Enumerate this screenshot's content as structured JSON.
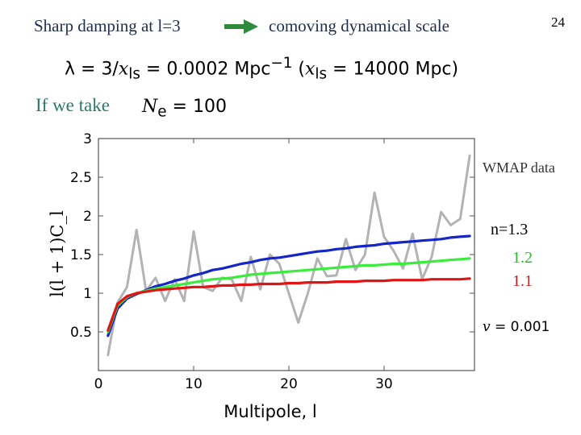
{
  "header": {
    "title_left": "Sharp damping at l=3",
    "title_right": "comoving dynamical scale",
    "page_number": "24"
  },
  "formula": {
    "lhs": "λ = 3/",
    "x1": "x",
    "sub1": "ls",
    "mid": " = 0.0002 Mpc",
    "exp": "−1",
    "paren_open": "  (",
    "x2": "x",
    "sub2": "ls",
    "tail": " = 14000 Mpc)"
  },
  "assumption": {
    "label": "If we take",
    "symbol": "N",
    "sub": "e",
    "value": " = 100"
  },
  "annotations": {
    "wmap": "WMAP data",
    "n13": "n=1.3",
    "n12": "1.2",
    "n11": "1.1",
    "v_symbol": "v",
    "v_value": " = 0.001"
  },
  "colors": {
    "wmap": "#b3b3b3",
    "n13": "#1426c8",
    "n12": "#3cec3c",
    "n11": "#e01414",
    "accent_arrow": "#2e8b3c"
  },
  "chart_data": {
    "type": "line",
    "xlabel": "Multipole, l",
    "ylabel": "l(l + 1)C_l",
    "xlim": [
      0,
      39.5
    ],
    "ylim": [
      0,
      3
    ],
    "xticks": [
      0,
      10,
      20,
      30
    ],
    "yticks": [
      0.5,
      1,
      1.5,
      2,
      2.5,
      3
    ],
    "ytick_labels": [
      "0.5",
      "1",
      "1.5",
      "2",
      "2.5",
      "3"
    ],
    "grid": false,
    "series": [
      {
        "name": "WMAP data",
        "color": "#b3b3b3",
        "x": [
          1,
          2,
          3,
          4,
          5,
          6,
          7,
          8,
          9,
          10,
          11,
          12,
          13,
          14,
          15,
          16,
          17,
          18,
          19,
          20,
          21,
          22,
          23,
          24,
          25,
          26,
          27,
          28,
          29,
          30,
          31,
          32,
          33,
          34,
          35,
          36,
          37,
          38,
          39
        ],
        "y": [
          0.2,
          0.88,
          1.08,
          1.82,
          1.03,
          1.2,
          0.9,
          1.18,
          0.9,
          1.8,
          1.08,
          1.03,
          1.2,
          1.18,
          0.9,
          1.47,
          1.05,
          1.5,
          1.38,
          1.0,
          0.62,
          1.0,
          1.45,
          1.22,
          1.23,
          1.7,
          1.3,
          1.5,
          2.3,
          1.73,
          1.55,
          1.32,
          1.77,
          1.18,
          1.47,
          2.05,
          1.88,
          1.96,
          2.78
        ]
      },
      {
        "name": "n=1.3",
        "color": "#1426c8",
        "x": [
          1,
          2,
          3,
          4,
          5,
          6,
          7,
          8,
          9,
          10,
          11,
          12,
          13,
          14,
          15,
          16,
          17,
          18,
          19,
          20,
          21,
          22,
          23,
          24,
          25,
          26,
          27,
          28,
          29,
          30,
          31,
          32,
          33,
          34,
          35,
          36,
          37,
          38,
          39
        ],
        "y": [
          0.45,
          0.8,
          0.93,
          0.99,
          1.04,
          1.09,
          1.12,
          1.16,
          1.19,
          1.23,
          1.26,
          1.3,
          1.32,
          1.35,
          1.38,
          1.4,
          1.43,
          1.45,
          1.46,
          1.48,
          1.5,
          1.52,
          1.54,
          1.55,
          1.57,
          1.58,
          1.6,
          1.61,
          1.62,
          1.64,
          1.65,
          1.66,
          1.67,
          1.68,
          1.69,
          1.7,
          1.72,
          1.73,
          1.74
        ]
      },
      {
        "name": "1.2",
        "color": "#3cec3c",
        "x": [
          1,
          2,
          3,
          4,
          5,
          6,
          7,
          8,
          9,
          10,
          11,
          12,
          13,
          14,
          15,
          16,
          17,
          18,
          19,
          20,
          21,
          22,
          23,
          24,
          25,
          26,
          27,
          28,
          29,
          30,
          31,
          32,
          33,
          34,
          35,
          36,
          37,
          38,
          39
        ],
        "y": [
          0.5,
          0.84,
          0.95,
          1.0,
          1.03,
          1.06,
          1.08,
          1.1,
          1.12,
          1.14,
          1.16,
          1.18,
          1.19,
          1.2,
          1.22,
          1.24,
          1.25,
          1.26,
          1.27,
          1.28,
          1.29,
          1.3,
          1.31,
          1.32,
          1.33,
          1.34,
          1.35,
          1.36,
          1.36,
          1.37,
          1.38,
          1.38,
          1.39,
          1.4,
          1.41,
          1.42,
          1.43,
          1.44,
          1.45
        ]
      },
      {
        "name": "1.1",
        "color": "#e01414",
        "x": [
          1,
          2,
          3,
          4,
          5,
          6,
          7,
          8,
          9,
          10,
          11,
          12,
          13,
          14,
          15,
          16,
          17,
          18,
          19,
          20,
          21,
          22,
          23,
          24,
          25,
          26,
          27,
          28,
          29,
          30,
          31,
          32,
          33,
          34,
          35,
          36,
          37,
          38,
          39
        ],
        "y": [
          0.52,
          0.86,
          0.96,
          1.0,
          1.02,
          1.04,
          1.05,
          1.06,
          1.07,
          1.08,
          1.08,
          1.09,
          1.1,
          1.1,
          1.11,
          1.11,
          1.12,
          1.12,
          1.12,
          1.13,
          1.13,
          1.14,
          1.14,
          1.14,
          1.15,
          1.15,
          1.15,
          1.16,
          1.16,
          1.16,
          1.17,
          1.17,
          1.17,
          1.17,
          1.18,
          1.18,
          1.18,
          1.18,
          1.19
        ]
      }
    ]
  }
}
